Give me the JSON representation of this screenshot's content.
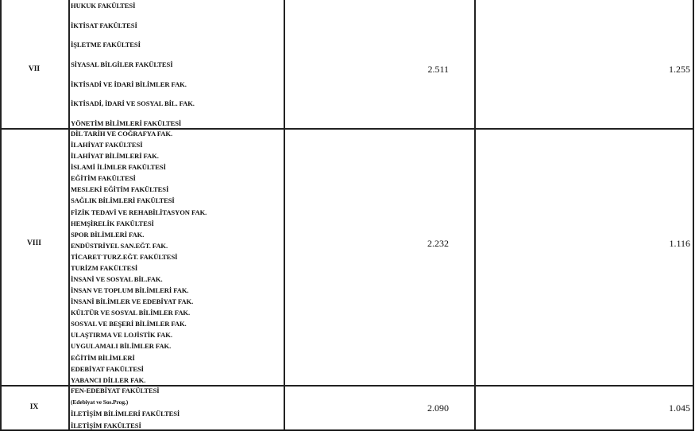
{
  "rows": [
    {
      "group": "VII",
      "faculties": [
        "HUKUK FAKÜLTESİ",
        "İKTİSAT FAKÜLTESİ",
        "İŞLETME FAKÜLTESİ",
        "SİYASAL BİLGİLER FAKÜLTESİ",
        "İKTİSADİ VE İDARİ BİLİMLER FAK.",
        "İKTİSADİ, İDARİ VE SOSYAL BİL. FAK.",
        "YÖNETİM BİLİMLERİ FAKÜLTESİ"
      ],
      "value1": "2.511",
      "value2": "1.255"
    },
    {
      "group": "VIII",
      "faculties": [
        "DİL TARİH VE COĞRAFYA FAK.",
        "İLAHİYAT FAKÜLTESİ",
        "İLAHİYAT BİLİMLERİ FAK.",
        "İSLAMİ İLİMLER FAKÜLTESİ",
        "EĞİTİM FAKÜLTESİ",
        "MESLEKİ EĞİTİM FAKÜLTESİ",
        "SAĞLIK BİLİMLERİ FAKÜLTESİ",
        "FİZİK TEDAVİ VE REHABİLİTASYON FAK.",
        "HEMŞİRELİK FAKÜLTESİ",
        "SPOR BİLİMLERİ FAK.",
        "ENDÜSTRİYEL SAN.EĞT. FAK.",
        "TİCARET TURZ.EĞT. FAKÜLTESİ",
        "TURİZM FAKÜLTESİ",
        "İNSANİ VE SOSYAL BİL.FAK.",
        "İNSAN VE TOPLUM BİLİMLERİ FAK.",
        "İNSANİ BİLİMLER VE EDEBİYAT FAK.",
        "KÜLTÜR VE SOSYAL BİLİMLER FAK.",
        "SOSYAL VE BEŞERİ BİLİMLER FAK.",
        "ULAŞTIRMA VE LOJİSTİK FAK.",
        "UYGULAMALI BİLİMLER FAK.",
        "EĞİTİM BİLİMLERİ",
        "EDEBİYAT FAKÜLTESİ",
        "YABANCI DİLLER FAK."
      ],
      "value1": "2.232",
      "value2": "1.116"
    },
    {
      "group": "IX",
      "faculties": [
        "FEN-EDEBİYAT FAKÜLTESİ",
        "(Edebiyat ve Sos.Prog.)",
        "İLETİŞİM BİLİMLERİ FAKÜLTESİ",
        "İLETİŞİM  FAKÜLTESİ"
      ],
      "value1": "2.090",
      "value2": "1.045"
    }
  ]
}
